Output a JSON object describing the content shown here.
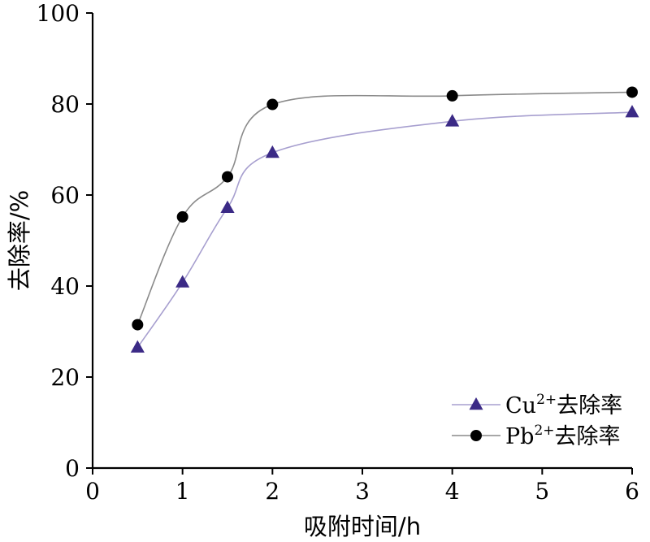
{
  "chart_data": {
    "type": "line",
    "xlabel": "吸附时间/h",
    "ylabel": "去除率/%",
    "xlim": [
      0,
      6
    ],
    "ylim": [
      0,
      100
    ],
    "x_ticks": [
      0,
      1,
      2,
      3,
      4,
      5,
      6
    ],
    "y_ticks": [
      0,
      20,
      40,
      60,
      80,
      100
    ],
    "grid": false,
    "legend_position": "bottom-right",
    "series": [
      {
        "name": "Cu2+去除率",
        "name_base": "Cu",
        "name_sup": "2+",
        "name_suffix": "去除率",
        "marker": "triangle",
        "line_color": "#a79fcf",
        "marker_color": "#3b2a86",
        "x": [
          0.5,
          1,
          1.5,
          2,
          4,
          6
        ],
        "y": [
          26.5,
          40.8,
          57.2,
          69.3,
          76.2,
          78.2
        ]
      },
      {
        "name": "Pb2+去除率",
        "name_base": "Pb",
        "name_sup": "2+",
        "name_suffix": "去除率",
        "marker": "circle",
        "line_color": "#8a8a8a",
        "marker_color": "#000000",
        "x": [
          0.5,
          1,
          1.5,
          2,
          4,
          6
        ],
        "y": [
          31.5,
          55.2,
          64.0,
          79.9,
          81.8,
          82.6
        ]
      }
    ]
  }
}
